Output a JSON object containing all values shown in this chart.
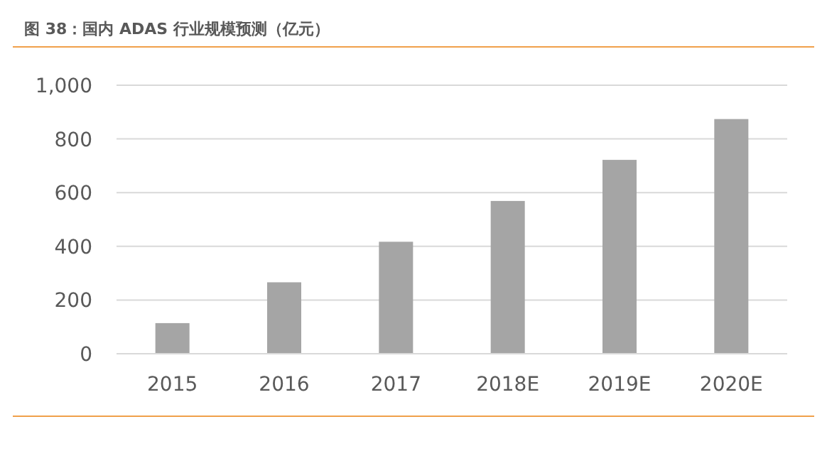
{
  "chart_data": {
    "type": "bar",
    "title": "图 38：国内 ADAS 行业规模预测（亿元）",
    "categories": [
      "2015",
      "2016",
      "2017",
      "2018E",
      "2019E",
      "2020E"
    ],
    "values": [
      114,
      266,
      417,
      569,
      722,
      874
    ],
    "color": "#a5a5a5",
    "ylim": [
      0,
      1000
    ],
    "yticks": [
      0,
      {
        "value": 200,
        "label": "200"
      },
      {
        "value": 400,
        "label": "400"
      },
      {
        "value": 600,
        "label": "600"
      },
      {
        "value": 800,
        "label": "800"
      },
      {
        "value": 1000,
        "label": "1,000"
      }
    ],
    "grid": "y"
  }
}
